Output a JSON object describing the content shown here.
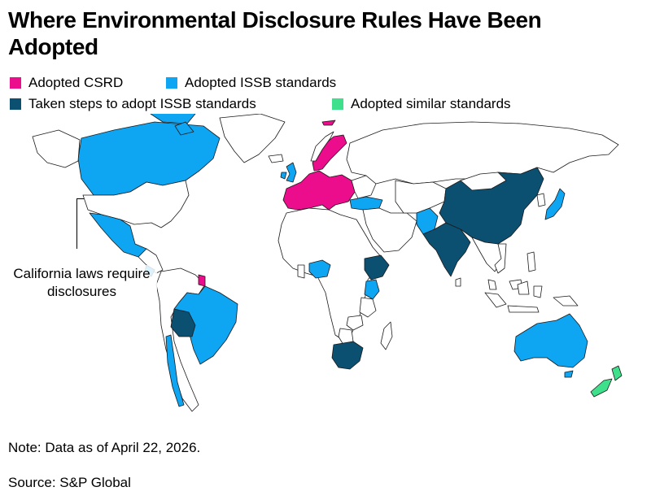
{
  "title": "Where Environmental Disclosure Rules Have Been Adopted",
  "legend": [
    {
      "label": "Adopted CSRD",
      "color": "#ec0d8c"
    },
    {
      "label": "Adopted ISSB standards",
      "color": "#0ea5f2"
    },
    {
      "label": "Taken steps to adopt ISSB standards",
      "color": "#0b4f71"
    },
    {
      "label": "Adopted similar standards",
      "color": "#3fe08c"
    }
  ],
  "annotation": "California laws require disclosures",
  "note": "Note: Data as of April 22, 2026.",
  "source": "Source: S&P Global",
  "colors": {
    "csrd": "#ec0d8c",
    "issb": "#0ea5f2",
    "issb_steps": "#0b4f71",
    "similar": "#3fe08c",
    "none": "#ffffff",
    "border": "#1a1a1a"
  },
  "regions": [
    {
      "name": "Canada",
      "status": "issb"
    },
    {
      "name": "United States",
      "status": "none"
    },
    {
      "name": "Mexico",
      "status": "issb"
    },
    {
      "name": "Costa Rica",
      "status": "issb"
    },
    {
      "name": "French Guiana",
      "status": "csrd"
    },
    {
      "name": "Brazil",
      "status": "issb"
    },
    {
      "name": "Bolivia",
      "status": "issb_steps"
    },
    {
      "name": "Chile",
      "status": "issb"
    },
    {
      "name": "European Union",
      "status": "csrd"
    },
    {
      "name": "United Kingdom",
      "status": "issb"
    },
    {
      "name": "Turkey",
      "status": "issb"
    },
    {
      "name": "Nigeria",
      "status": "issb"
    },
    {
      "name": "Ethiopia",
      "status": "issb_steps"
    },
    {
      "name": "Kenya",
      "status": "issb"
    },
    {
      "name": "South Africa",
      "status": "issb_steps"
    },
    {
      "name": "Pakistan",
      "status": "issb"
    },
    {
      "name": "India",
      "status": "issb_steps"
    },
    {
      "name": "China",
      "status": "issb_steps"
    },
    {
      "name": "Japan",
      "status": "issb"
    },
    {
      "name": "Australia",
      "status": "issb"
    },
    {
      "name": "New Zealand",
      "status": "similar"
    }
  ]
}
